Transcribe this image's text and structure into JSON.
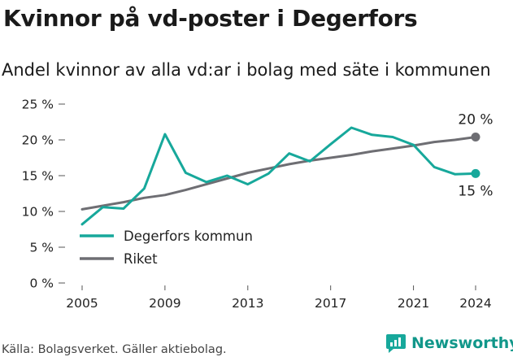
{
  "title": "Kvinnor på vd-poster i Degerfors",
  "subtitle": "Andel kvinnor av alla vd:ar i bolag med säte i kommunen",
  "footer": "Källa: Bolagsverket. Gäller aktiebolag.",
  "brand": "Newsworthy",
  "chart_data": {
    "type": "line",
    "x": [
      2005,
      2006,
      2007,
      2008,
      2009,
      2010,
      2011,
      2012,
      2013,
      2014,
      2015,
      2016,
      2017,
      2018,
      2019,
      2020,
      2021,
      2022,
      2023,
      2024
    ],
    "x_tick_labels": [
      "2005",
      "2009",
      "2013",
      "2017",
      "2021",
      "2024"
    ],
    "y_tick_labels": [
      "0 %",
      "5 %",
      "10 %",
      "15 %",
      "20 %",
      "25 %"
    ],
    "ylim": [
      0,
      25
    ],
    "series": [
      {
        "name": "Degerfors kommun",
        "color": "#17a89b",
        "values": [
          8.2,
          10.6,
          10.4,
          13.2,
          20.8,
          15.4,
          14.1,
          15.0,
          13.8,
          15.3,
          18.1,
          17.0,
          19.4,
          21.7,
          20.7,
          20.4,
          19.3,
          16.2,
          15.2,
          15.3
        ],
        "end_label": "15 %"
      },
      {
        "name": "Riket",
        "color": "#6e6e73",
        "values": [
          10.3,
          10.8,
          11.3,
          11.9,
          12.3,
          13.0,
          13.8,
          14.6,
          15.4,
          16.0,
          16.6,
          17.1,
          17.5,
          17.9,
          18.4,
          18.8,
          19.2,
          19.7,
          20.0,
          20.4
        ],
        "end_label": "20 %"
      }
    ],
    "legend_position": "bottom-left",
    "grid": false
  }
}
